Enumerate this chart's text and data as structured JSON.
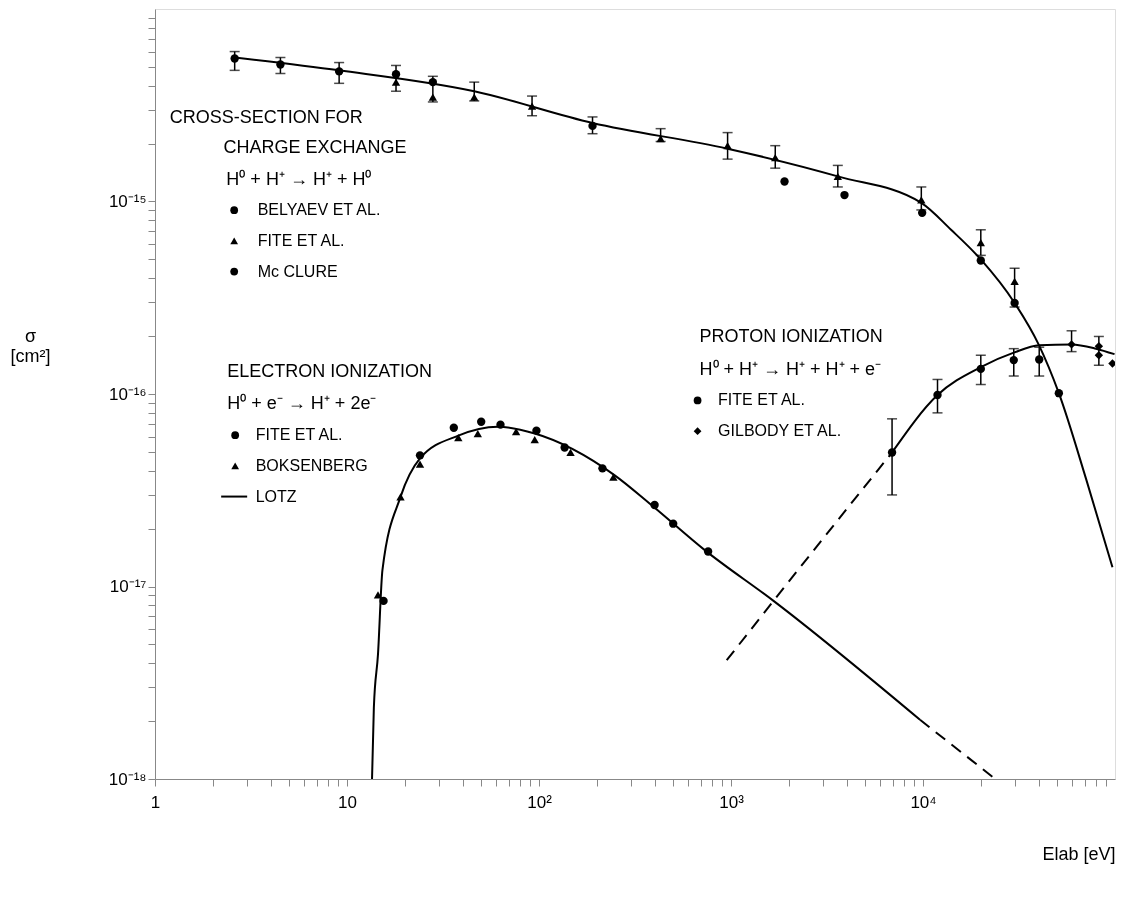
{
  "chart_data": {
    "type": "scatter",
    "xlabel": "Elab [eV]",
    "ylabel": "σ [cm²]",
    "log": "xy",
    "legend": "top left",
    "xlim": [
      1,
      100000
    ],
    "ylim": [
      1e-18,
      1e-14
    ],
    "xticks": [
      1,
      10,
      {
        "value": 100,
        "label": "10²"
      },
      {
        "value": 1000,
        "label": "10³"
      },
      {
        "value": 10000,
        "label": "10⁴"
      },
      {
        "value": 2,
        "label": null
      },
      {
        "value": 3,
        "label": null
      },
      {
        "value": 4,
        "label": null
      },
      {
        "value": 5,
        "label": null
      },
      {
        "value": 6,
        "label": null
      },
      {
        "value": 7,
        "label": null
      },
      {
        "value": 8,
        "label": null
      },
      {
        "value": 9,
        "label": null
      },
      {
        "value": 20,
        "label": null
      },
      {
        "value": 30,
        "label": null
      },
      {
        "value": 40,
        "label": null
      },
      {
        "value": 50,
        "label": null
      },
      {
        "value": 60,
        "label": null
      },
      {
        "value": 70,
        "label": null
      },
      {
        "value": 80,
        "label": null
      },
      {
        "value": 90,
        "label": null
      },
      {
        "value": 200,
        "label": null
      },
      {
        "value": 300,
        "label": null
      },
      {
        "value": 400,
        "label": null
      },
      {
        "value": 500,
        "label": null
      },
      {
        "value": 600,
        "label": null
      },
      {
        "value": 700,
        "label": null
      },
      {
        "value": 800,
        "label": null
      },
      {
        "value": 900,
        "label": null
      },
      {
        "value": 2000,
        "label": null
      },
      {
        "value": 3000,
        "label": null
      },
      {
        "value": 4000,
        "label": null
      },
      {
        "value": 5000,
        "label": null
      },
      {
        "value": 6000,
        "label": null
      },
      {
        "value": 7000,
        "label": null
      },
      {
        "value": 8000,
        "label": null
      },
      {
        "value": 9000,
        "label": null
      },
      {
        "value": 20000,
        "label": null
      },
      {
        "value": 30000,
        "label": null
      },
      {
        "value": 40000,
        "label": null
      },
      {
        "value": 50000,
        "label": null
      },
      {
        "value": 60000,
        "label": null
      },
      {
        "value": 70000,
        "label": null
      },
      {
        "value": 80000,
        "label": null
      },
      {
        "value": 90000,
        "label": null
      }
    ],
    "yticks": [
      {
        "value": 1e-18,
        "label": "10⁻¹⁸"
      },
      {
        "value": 1e-17,
        "label": "10⁻¹⁷"
      },
      {
        "value": 1e-16,
        "label": "10⁻¹⁶"
      },
      {
        "value": 1e-15,
        "label": "10⁻¹⁵"
      },
      {
        "value": 2e-18,
        "label": null
      },
      {
        "value": 3e-18,
        "label": null
      },
      {
        "value": 4e-18,
        "label": null
      },
      {
        "value": 5e-18,
        "label": null
      },
      {
        "value": 6e-18,
        "label": null
      },
      {
        "value": 7e-18,
        "label": null
      },
      {
        "value": 8e-18,
        "label": null
      },
      {
        "value": 9e-18,
        "label": null
      },
      {
        "value": 2e-17,
        "label": null
      },
      {
        "value": 3e-17,
        "label": null
      },
      {
        "value": 4e-17,
        "label": null
      },
      {
        "value": 5e-17,
        "label": null
      },
      {
        "value": 6e-17,
        "label": null
      },
      {
        "value": 7e-17,
        "label": null
      },
      {
        "value": 8e-17,
        "label": null
      },
      {
        "value": 9e-17,
        "label": null
      },
      {
        "value": 2e-16,
        "label": null
      },
      {
        "value": 3e-16,
        "label": null
      },
      {
        "value": 4e-16,
        "label": null
      },
      {
        "value": 5e-16,
        "label": null
      },
      {
        "value": 6e-16,
        "label": null
      },
      {
        "value": 7e-16,
        "label": null
      },
      {
        "value": 8e-16,
        "label": null
      },
      {
        "value": 9e-16,
        "label": null
      },
      {
        "value": 2e-15,
        "label": null
      },
      {
        "value": 3e-15,
        "label": null
      },
      {
        "value": 4e-15,
        "label": null
      },
      {
        "value": 5e-15,
        "label": null
      },
      {
        "value": 6e-15,
        "label": null
      },
      {
        "value": 7e-15,
        "label": null
      },
      {
        "value": 8e-15,
        "label": null
      },
      {
        "value": 9e-15,
        "label": null
      }
    ],
    "annotations": [
      "CROSS-SECTION FOR",
      "CHARGE EXCHANGE",
      "H⁰ + H⁺ → H⁺ + H⁰",
      "ELECTRON IONIZATION",
      "H⁰ + e⁻ → H⁺ + 2e⁻",
      "PROTON IONIZATION",
      "H⁰ + H⁺ → H⁺ + H⁺ + e⁻"
    ],
    "series": [
      {
        "name": "BELYAEV ET AL.",
        "marker": "circle",
        "color": "#000000",
        "x": [
          2.6,
          4.5,
          9.1,
          18,
          28,
          190
        ],
        "values": [
          5.53e-15,
          5.15e-15,
          4.74e-15,
          4.58e-15,
          4.17e-15,
          2.47e-15
        ],
        "errors": [
          [
            4.8e-15,
            6.01e-15
          ],
          [
            4.63e-15,
            5.6e-15
          ],
          [
            4.11e-15,
            5.27e-15
          ],
          [
            3.74e-15,
            5.09e-15
          ],
          null,
          [
            2.25e-15,
            2.75e-15
          ]
        ]
      },
      {
        "name": "FITE ET AL.",
        "marker": "triangle",
        "color": "#000000",
        "x": [
          18,
          28,
          46,
          92,
          430,
          960,
          1700,
          3600,
          9800,
          20000,
          30000
        ],
        "values": [
          4.17e-15,
          3.49e-15,
          3.49e-15,
          3.13e-15,
          2.12e-15,
          1.95e-15,
          1.69e-15,
          1.35e-15,
          1.02e-15,
          6.12e-16,
          3.85e-16
        ],
        "errors": [
          null,
          [
            3.29e-15,
            4.47e-15
          ],
          [
            3.33e-15,
            4.17e-15
          ],
          [
            2.79e-15,
            3.53e-15
          ],
          [
            2.05e-15,
            2.39e-15
          ],
          [
            1.66e-15,
            2.28e-15
          ],
          [
            1.49e-15,
            1.95e-15
          ],
          [
            1.19e-15,
            1.54e-15
          ],
          [
            9.04e-16,
            1.19e-15
          ],
          [
            5.25e-16,
            7.13e-16
          ],
          [
            2.83e-16,
            4.5e-16
          ]
        ]
      },
      {
        "name": "Mc CLURE",
        "marker": "circle",
        "color": "#000000",
        "x": [
          1900,
          3900,
          9900,
          20000,
          30000,
          51000
        ],
        "values": [
          1.27e-15,
          1.08e-15,
          8.73e-16,
          4.94e-16,
          2.97e-16,
          1.01e-16
        ]
      },
      {
        "type": "line",
        "line_style": "solid",
        "color": "#000000",
        "x": [
          2.6,
          9.1,
          46,
          190,
          960,
          3600,
          9800,
          14000,
          20000,
          30000,
          40000,
          51000,
          71000,
          97000
        ],
        "values": [
          5.6e-15,
          4.8e-15,
          3.74e-15,
          2.56e-15,
          1.88e-15,
          1.35e-15,
          9.83e-16,
          7.13e-16,
          5e-16,
          2.97e-16,
          1.81e-16,
          1.01e-16,
          3.57e-17,
          1.26e-17
        ]
      },
      {
        "name": "FITE ET AL.",
        "marker": "circle",
        "color": "#000000",
        "x": [
          15.5,
          24,
          36,
          50,
          63,
          97,
          136,
          214,
          400,
          500,
          760
        ],
        "values": [
          8.42e-18,
          4.8e-17,
          6.68e-17,
          7.18e-17,
          6.93e-17,
          6.45e-17,
          5.27e-17,
          4.11e-17,
          2.65e-17,
          2.12e-17,
          1.52e-17
        ]
      },
      {
        "name": "BOKSENBERG",
        "marker": "triangle",
        "color": "#000000",
        "x": [
          14.5,
          19,
          24,
          38,
          48,
          76,
          95,
          146,
          244
        ],
        "values": [
          9.04e-18,
          2.92e-17,
          4.32e-17,
          5.94e-17,
          6.23e-17,
          6.38e-17,
          5.8e-17,
          4.97e-17,
          3.7e-17
        ]
      },
      {
        "name": "LOTZ",
        "type": "line",
        "line_style": "solid",
        "color": "#000000",
        "x": [
          13.5,
          13.8,
          14.5,
          15.3,
          19,
          24,
          38,
          61,
          95,
          247,
          385,
          733,
          1665,
          9650
        ],
        "values": [
          1e-18,
          2.35e-18,
          4.44e-18,
          1.22e-17,
          2.92e-17,
          4.63e-17,
          6.08e-17,
          6.76e-17,
          6.23e-17,
          3.79e-17,
          2.65e-17,
          1.54e-17,
          8.42e-18,
          2.03e-18
        ]
      },
      {
        "type": "line",
        "line_style": "dashed",
        "color": "#000000",
        "x": [
          9650,
          23800
        ],
        "values": [
          2.03e-18,
          1e-18
        ]
      },
      {
        "name": "FITE ET AL.",
        "marker": "circle",
        "color": "#000000",
        "x": [
          6900,
          11900,
          20000,
          29700,
          40300
        ],
        "values": [
          4.97e-17,
          9.88e-17,
          1.35e-16,
          1.5e-16,
          1.51e-16
        ],
        "errors": [
          [
            2.99e-17,
            7.43e-17
          ],
          [
            7.98e-17,
            1.19e-16
          ],
          [
            1.12e-16,
            1.59e-16
          ],
          [
            1.24e-16,
            1.72e-16
          ],
          [
            1.24e-16,
            1.75e-16
          ]
        ]
      },
      {
        "name": "GILBODY ET AL.",
        "marker": "diamond",
        "color": "#000000",
        "x": [
          59400,
          82400,
          82400,
          97000
        ],
        "values": [
          1.81e-16,
          1.77e-16,
          1.59e-16,
          1.44e-16
        ],
        "errors": [
          [
            1.66e-16,
            2.13e-16
          ],
          [
            1.41e-16,
            1.99e-16
          ],
          null,
          null
        ]
      },
      {
        "type": "line",
        "line_style": "solid",
        "color": "#000000",
        "x": [
          6900,
          11900,
          20000,
          29700,
          40300,
          59400,
          79600,
          99400
        ],
        "values": [
          4.97e-17,
          9.88e-17,
          1.38e-16,
          1.64e-16,
          1.79e-16,
          1.81e-16,
          1.72e-16,
          1.61e-16
        ]
      },
      {
        "type": "line",
        "line_style": "dashed",
        "color": "#000000",
        "x": [
          950,
          1665,
          6900
        ],
        "values": [
          4.14e-18,
          8.42e-18,
          4.97e-17
        ]
      }
    ]
  }
}
